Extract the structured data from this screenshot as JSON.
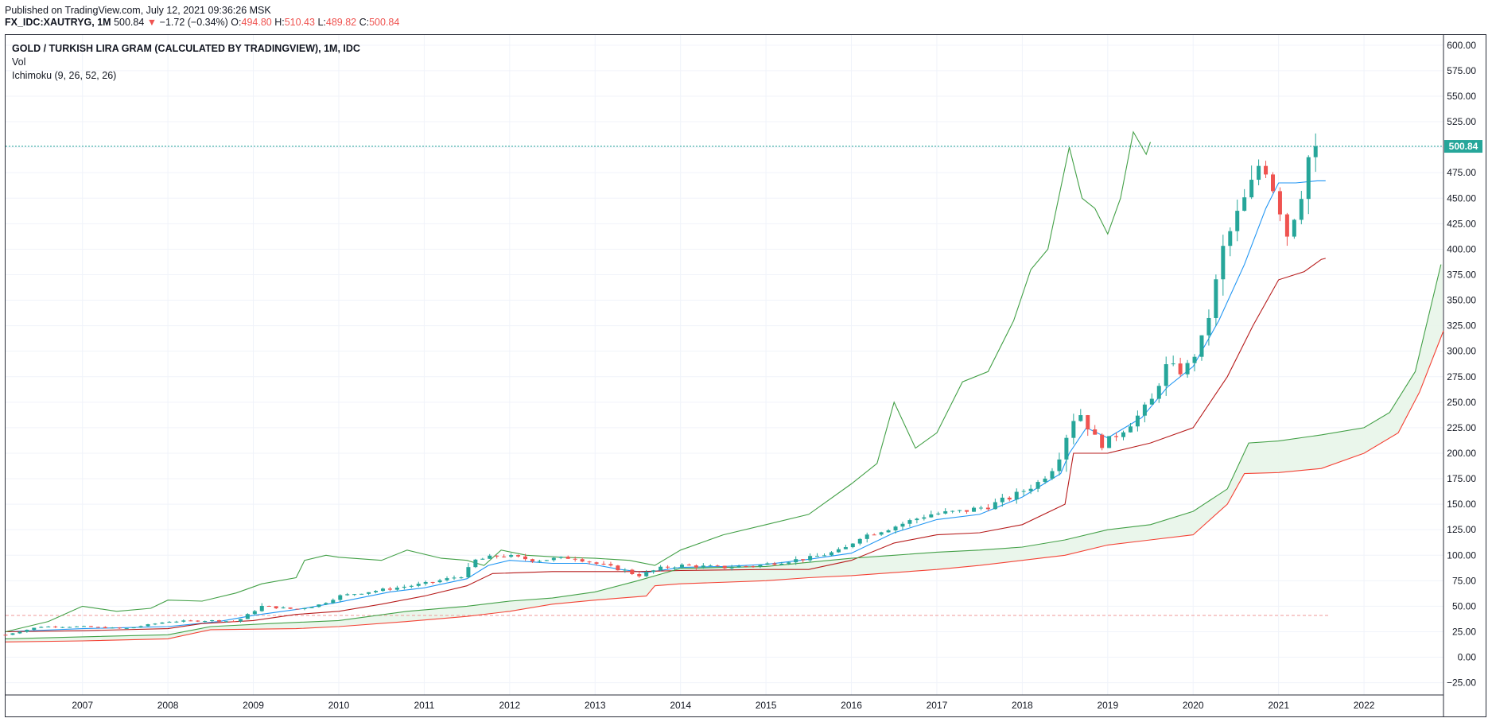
{
  "header": {
    "published": "Published on TradingView.com, July 12, 2021 09:36:26 MSK",
    "symbol": "FX_IDC:XAUTRYG, 1M",
    "last": "500.84",
    "arrow": "▼",
    "change": "−1.72 (−0.34%)",
    "o_label": "O:",
    "o_value": "494.80",
    "h_label": "H:",
    "h_value": "510.43",
    "l_label": "L:",
    "l_value": "489.82",
    "c_label": "C:",
    "c_value": "500.84"
  },
  "legend": {
    "title": "GOLD / TURKISH LIRA GRAM (CALCULATED BY TRADINGVIEW), 1M, IDC",
    "volume": "Vol",
    "indicator": "Ichimoku (9, 26, 52, 26)"
  },
  "colors": {
    "up": "#26a69a",
    "down": "#ef5350",
    "conversion": "#2196f3",
    "base": "#b71c1c",
    "lagging": "#43a047",
    "spanA": "#43a047",
    "spanB": "#f44336",
    "cloud": "#e8f5e9",
    "priceLine": "#26a69a"
  },
  "chart_data": {
    "type": "candlestick",
    "symbol": "FX_IDC:XAUTRYG",
    "interval": "1M",
    "ylim": [
      -37,
      610
    ],
    "y_ticks": [
      "600.00",
      "575.00",
      "550.00",
      "525.00",
      "500.00",
      "475.00",
      "450.00",
      "425.00",
      "400.00",
      "375.00",
      "350.00",
      "325.00",
      "300.00",
      "275.00",
      "250.00",
      "225.00",
      "200.00",
      "175.00",
      "150.00",
      "125.00",
      "100.00",
      "75.00",
      "50.00",
      "25.00",
      "0.00",
      "−25.00"
    ],
    "y_tick_values": [
      600,
      575,
      550,
      525,
      500,
      475,
      450,
      425,
      400,
      375,
      350,
      325,
      300,
      275,
      250,
      225,
      200,
      175,
      150,
      125,
      100,
      75,
      50,
      25,
      0,
      -25
    ],
    "x_range": [
      2006.1,
      2022.93
    ],
    "x_ticks": [
      "2007",
      "2008",
      "2009",
      "2010",
      "2011",
      "2012",
      "2013",
      "2014",
      "2015",
      "2016",
      "2017",
      "2018",
      "2019",
      "2020",
      "2021",
      "2022"
    ],
    "last_price_label": "500.84",
    "last_price": 500.84,
    "reference_level": 41,
    "close_anchors": [
      [
        2006.1,
        22
      ],
      [
        2006.5,
        30
      ],
      [
        2007.0,
        30
      ],
      [
        2007.5,
        28
      ],
      [
        2008.0,
        35
      ],
      [
        2008.5,
        36
      ],
      [
        2008.8,
        35
      ],
      [
        2009.1,
        50
      ],
      [
        2009.5,
        47
      ],
      [
        2009.8,
        52
      ],
      [
        2010.0,
        60
      ],
      [
        2010.5,
        66
      ],
      [
        2011.0,
        72
      ],
      [
        2011.45,
        80
      ],
      [
        2011.6,
        95
      ],
      [
        2011.9,
        100
      ],
      [
        2012.3,
        95
      ],
      [
        2012.75,
        98
      ],
      [
        2013.0,
        92
      ],
      [
        2013.35,
        85
      ],
      [
        2013.5,
        80
      ],
      [
        2013.8,
        88
      ],
      [
        2014.0,
        90
      ],
      [
        2014.5,
        88
      ],
      [
        2014.9,
        90
      ],
      [
        2015.3,
        95
      ],
      [
        2015.5,
        97
      ],
      [
        2015.9,
        105
      ],
      [
        2016.1,
        118
      ],
      [
        2016.5,
        128
      ],
      [
        2016.9,
        140
      ],
      [
        2017.3,
        143
      ],
      [
        2017.6,
        148
      ],
      [
        2017.9,
        158
      ],
      [
        2018.2,
        172
      ],
      [
        2018.4,
        190
      ],
      [
        2018.55,
        225
      ],
      [
        2018.65,
        243
      ],
      [
        2018.85,
        215
      ],
      [
        2018.95,
        208
      ],
      [
        2019.2,
        225
      ],
      [
        2019.4,
        240
      ],
      [
        2019.55,
        255
      ],
      [
        2019.65,
        285
      ],
      [
        2019.9,
        280
      ],
      [
        2020.1,
        310
      ],
      [
        2020.2,
        340
      ],
      [
        2020.35,
        400
      ],
      [
        2020.55,
        440
      ],
      [
        2020.65,
        455
      ],
      [
        2020.8,
        490
      ],
      [
        2020.9,
        470
      ],
      [
        2021.0,
        445
      ],
      [
        2021.1,
        415
      ],
      [
        2021.25,
        450
      ],
      [
        2021.4,
        510
      ],
      [
        2021.5,
        500.84
      ]
    ],
    "series": [
      {
        "name": "Conversion Line",
        "type": "line",
        "points": [
          [
            2006.1,
            25
          ],
          [
            2007.0,
            28
          ],
          [
            2008.0,
            30
          ],
          [
            2008.6,
            35
          ],
          [
            2009.0,
            41
          ],
          [
            2009.6,
            48
          ],
          [
            2010.0,
            54
          ],
          [
            2010.6,
            64
          ],
          [
            2011.0,
            68
          ],
          [
            2011.5,
            77
          ],
          [
            2011.75,
            90
          ],
          [
            2012.0,
            95
          ],
          [
            2012.5,
            92
          ],
          [
            2012.9,
            92
          ],
          [
            2013.3,
            86
          ],
          [
            2013.6,
            83
          ],
          [
            2014.0,
            88
          ],
          [
            2014.5,
            89
          ],
          [
            2015.0,
            91
          ],
          [
            2015.5,
            96
          ],
          [
            2016.0,
            102
          ],
          [
            2016.5,
            122
          ],
          [
            2017.0,
            135
          ],
          [
            2017.5,
            140
          ],
          [
            2018.0,
            157
          ],
          [
            2018.45,
            180
          ],
          [
            2018.55,
            200
          ],
          [
            2018.75,
            225
          ],
          [
            2019.0,
            215
          ],
          [
            2019.4,
            235
          ],
          [
            2019.7,
            265
          ],
          [
            2020.0,
            285
          ],
          [
            2020.3,
            330
          ],
          [
            2020.6,
            385
          ],
          [
            2020.85,
            440
          ],
          [
            2021.0,
            465
          ],
          [
            2021.2,
            465
          ],
          [
            2021.45,
            467
          ],
          [
            2021.55,
            467
          ]
        ]
      },
      {
        "name": "Base Line",
        "type": "line",
        "points": [
          [
            2006.1,
            25
          ],
          [
            2007.0,
            26
          ],
          [
            2008.0,
            28
          ],
          [
            2008.4,
            33
          ],
          [
            2009.0,
            36
          ],
          [
            2009.5,
            42
          ],
          [
            2010.0,
            45
          ],
          [
            2010.5,
            52
          ],
          [
            2011.0,
            60
          ],
          [
            2011.5,
            70
          ],
          [
            2011.8,
            82
          ],
          [
            2012.5,
            84
          ],
          [
            2013.0,
            84
          ],
          [
            2013.5,
            84
          ],
          [
            2014.0,
            85
          ],
          [
            2015.0,
            86
          ],
          [
            2015.5,
            86
          ],
          [
            2016.0,
            95
          ],
          [
            2016.5,
            112
          ],
          [
            2017.0,
            120
          ],
          [
            2017.5,
            122
          ],
          [
            2018.0,
            130
          ],
          [
            2018.5,
            150
          ],
          [
            2018.6,
            200
          ],
          [
            2019.0,
            200
          ],
          [
            2019.5,
            210
          ],
          [
            2020.0,
            225
          ],
          [
            2020.4,
            275
          ],
          [
            2020.7,
            325
          ],
          [
            2021.0,
            370
          ],
          [
            2021.3,
            378
          ],
          [
            2021.5,
            390
          ],
          [
            2021.55,
            391
          ]
        ]
      },
      {
        "name": "Lagging Span",
        "type": "line",
        "points": [
          [
            2006.1,
            25
          ],
          [
            2006.6,
            35
          ],
          [
            2007.0,
            50
          ],
          [
            2007.4,
            45
          ],
          [
            2007.8,
            48
          ],
          [
            2008.0,
            56
          ],
          [
            2008.4,
            55
          ],
          [
            2008.8,
            63
          ],
          [
            2009.1,
            72
          ],
          [
            2009.5,
            78
          ],
          [
            2009.6,
            95
          ],
          [
            2009.85,
            100
          ],
          [
            2010.0,
            98
          ],
          [
            2010.5,
            95
          ],
          [
            2010.8,
            105
          ],
          [
            2011.2,
            97
          ],
          [
            2011.5,
            95
          ],
          [
            2011.7,
            90
          ],
          [
            2011.9,
            105
          ],
          [
            2012.2,
            100
          ],
          [
            2012.6,
            98
          ],
          [
            2013.0,
            97
          ],
          [
            2013.4,
            95
          ],
          [
            2013.7,
            90
          ],
          [
            2014.0,
            105
          ],
          [
            2014.5,
            120
          ],
          [
            2015.0,
            130
          ],
          [
            2015.5,
            140
          ],
          [
            2016.0,
            170
          ],
          [
            2016.3,
            190
          ],
          [
            2016.5,
            250
          ],
          [
            2016.75,
            205
          ],
          [
            2017.0,
            220
          ],
          [
            2017.3,
            270
          ],
          [
            2017.6,
            280
          ],
          [
            2017.9,
            330
          ],
          [
            2018.1,
            380
          ],
          [
            2018.3,
            400
          ],
          [
            2018.55,
            500
          ],
          [
            2018.7,
            450
          ],
          [
            2018.85,
            440
          ],
          [
            2019.0,
            415
          ],
          [
            2019.15,
            450
          ],
          [
            2019.3,
            515
          ],
          [
            2019.45,
            493
          ],
          [
            2019.5,
            505
          ]
        ]
      },
      {
        "name": "Leading Span A",
        "type": "line",
        "points": [
          [
            2006.1,
            18
          ],
          [
            2007.0,
            20
          ],
          [
            2008.0,
            22
          ],
          [
            2008.5,
            30
          ],
          [
            2009.2,
            33
          ],
          [
            2010.0,
            36
          ],
          [
            2010.8,
            45
          ],
          [
            2011.5,
            50
          ],
          [
            2012.0,
            55
          ],
          [
            2012.5,
            58
          ],
          [
            2013.0,
            64
          ],
          [
            2013.5,
            75
          ],
          [
            2014.0,
            87
          ],
          [
            2014.5,
            88
          ],
          [
            2015.0,
            89
          ],
          [
            2015.5,
            93
          ],
          [
            2016.0,
            97
          ],
          [
            2016.5,
            100
          ],
          [
            2017.0,
            103
          ],
          [
            2017.5,
            105
          ],
          [
            2018.0,
            108
          ],
          [
            2018.5,
            115
          ],
          [
            2019.0,
            125
          ],
          [
            2019.5,
            130
          ],
          [
            2020.0,
            143
          ],
          [
            2020.4,
            165
          ],
          [
            2020.65,
            210
          ],
          [
            2021.0,
            212
          ],
          [
            2021.5,
            218
          ],
          [
            2022.0,
            225
          ],
          [
            2022.3,
            240
          ],
          [
            2022.6,
            280
          ],
          [
            2022.9,
            385
          ]
        ]
      },
      {
        "name": "Leading Span B",
        "type": "line",
        "points": [
          [
            2006.1,
            15
          ],
          [
            2007.0,
            16
          ],
          [
            2008.0,
            18
          ],
          [
            2008.5,
            27
          ],
          [
            2009.5,
            28
          ],
          [
            2010.0,
            30
          ],
          [
            2010.8,
            35
          ],
          [
            2011.5,
            40
          ],
          [
            2012.0,
            45
          ],
          [
            2012.5,
            52
          ],
          [
            2013.0,
            56
          ],
          [
            2013.6,
            60
          ],
          [
            2013.7,
            70
          ],
          [
            2014.0,
            72
          ],
          [
            2015.0,
            75
          ],
          [
            2015.5,
            78
          ],
          [
            2016.0,
            80
          ],
          [
            2016.5,
            83
          ],
          [
            2017.0,
            86
          ],
          [
            2017.5,
            90
          ],
          [
            2018.0,
            95
          ],
          [
            2018.5,
            100
          ],
          [
            2019.0,
            110
          ],
          [
            2019.5,
            115
          ],
          [
            2020.0,
            120
          ],
          [
            2020.4,
            150
          ],
          [
            2020.6,
            180
          ],
          [
            2021.0,
            181
          ],
          [
            2021.5,
            185
          ],
          [
            2022.0,
            200
          ],
          [
            2022.4,
            220
          ],
          [
            2022.65,
            260
          ],
          [
            2022.93,
            320
          ]
        ]
      }
    ]
  }
}
